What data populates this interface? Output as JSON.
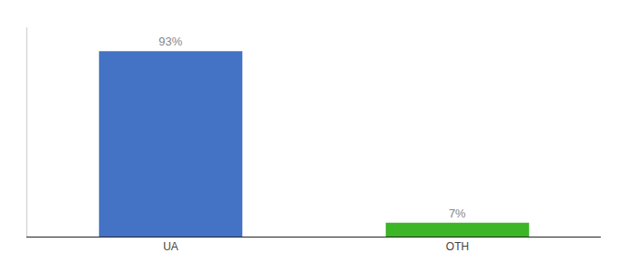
{
  "chart_data": {
    "type": "bar",
    "categories": [
      "UA",
      "OTH"
    ],
    "values": [
      93,
      7
    ],
    "value_labels": [
      "93%",
      "7%"
    ],
    "colors": [
      "#4472c4",
      "#3cb526"
    ],
    "ylim": [
      0,
      105
    ],
    "data_labels": true,
    "tick_labels": "x",
    "grid": false
  }
}
